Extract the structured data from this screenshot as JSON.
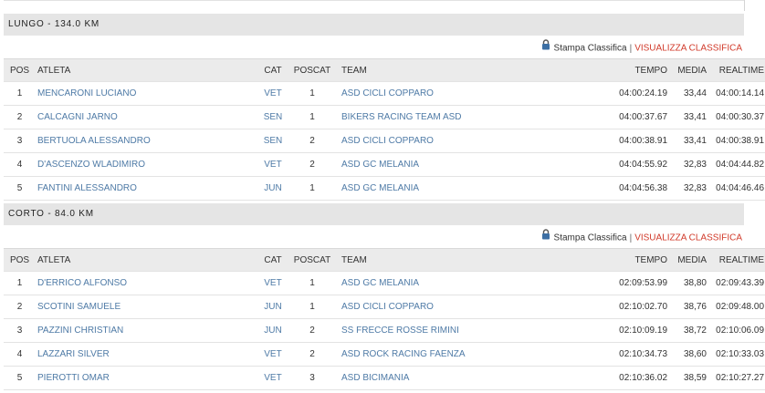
{
  "toolbar": {
    "stampa_label": "Stampa Classifica",
    "separator": "|",
    "visualizza_label": "VISUALIZZA CLASSIFICA"
  },
  "columns": {
    "pos": "POS",
    "atleta": "ATLETA",
    "cat": "CAT",
    "poscat": "POSCAT",
    "team": "TEAM",
    "tempo": "TEMPO",
    "media": "MEDIA",
    "realtime": "REALTIME"
  },
  "sections": [
    {
      "title": "LUNGO - 134.0 KM",
      "rows": [
        {
          "pos": "1",
          "atleta": "MENCARONI LUCIANO",
          "cat": "VET",
          "poscat": "1",
          "team": "ASD CICLI COPPARO",
          "tempo": "04:00:24.19",
          "media": "33,44",
          "realtime": "04:00:14.14"
        },
        {
          "pos": "2",
          "atleta": "CALCAGNI JARNO",
          "cat": "SEN",
          "poscat": "1",
          "team": "BIKERS RACING TEAM ASD",
          "tempo": "04:00:37.67",
          "media": "33,41",
          "realtime": "04:00:30.37"
        },
        {
          "pos": "3",
          "atleta": "BERTUOLA ALESSANDRO",
          "cat": "SEN",
          "poscat": "2",
          "team": "ASD CICLI COPPARO",
          "tempo": "04:00:38.91",
          "media": "33,41",
          "realtime": "04:00:38.91"
        },
        {
          "pos": "4",
          "atleta": "D'ASCENZO WLADIMIRO",
          "cat": "VET",
          "poscat": "2",
          "team": "ASD GC MELANIA",
          "tempo": "04:04:55.92",
          "media": "32,83",
          "realtime": "04:04:44.82"
        },
        {
          "pos": "5",
          "atleta": "FANTINI ALESSANDRO",
          "cat": "JUN",
          "poscat": "1",
          "team": "ASD GC MELANIA",
          "tempo": "04:04:56.38",
          "media": "32,83",
          "realtime": "04:04:46.46"
        }
      ]
    },
    {
      "title": "CORTO - 84.0 KM",
      "rows": [
        {
          "pos": "1",
          "atleta": "D'ERRICO ALFONSO",
          "cat": "VET",
          "poscat": "1",
          "team": "ASD GC MELANIA",
          "tempo": "02:09:53.99",
          "media": "38,80",
          "realtime": "02:09:43.39"
        },
        {
          "pos": "2",
          "atleta": "SCOTINI SAMUELE",
          "cat": "JUN",
          "poscat": "1",
          "team": "ASD CICLI COPPARO",
          "tempo": "02:10:02.70",
          "media": "38,76",
          "realtime": "02:09:48.00"
        },
        {
          "pos": "3",
          "atleta": "PAZZINI CHRISTIAN",
          "cat": "JUN",
          "poscat": "2",
          "team": "SS FRECCE ROSSE RIMINI",
          "tempo": "02:10:09.19",
          "media": "38,72",
          "realtime": "02:10:06.09"
        },
        {
          "pos": "4",
          "atleta": "LAZZARI SILVER",
          "cat": "VET",
          "poscat": "2",
          "team": "ASD ROCK RACING FAENZA",
          "tempo": "02:10:34.73",
          "media": "38,60",
          "realtime": "02:10:33.03"
        },
        {
          "pos": "5",
          "atleta": "PIEROTTI OMAR",
          "cat": "VET",
          "poscat": "3",
          "team": "ASD BICIMANIA",
          "tempo": "02:10:36.02",
          "media": "38,59",
          "realtime": "02:10:27.27"
        }
      ]
    }
  ]
}
